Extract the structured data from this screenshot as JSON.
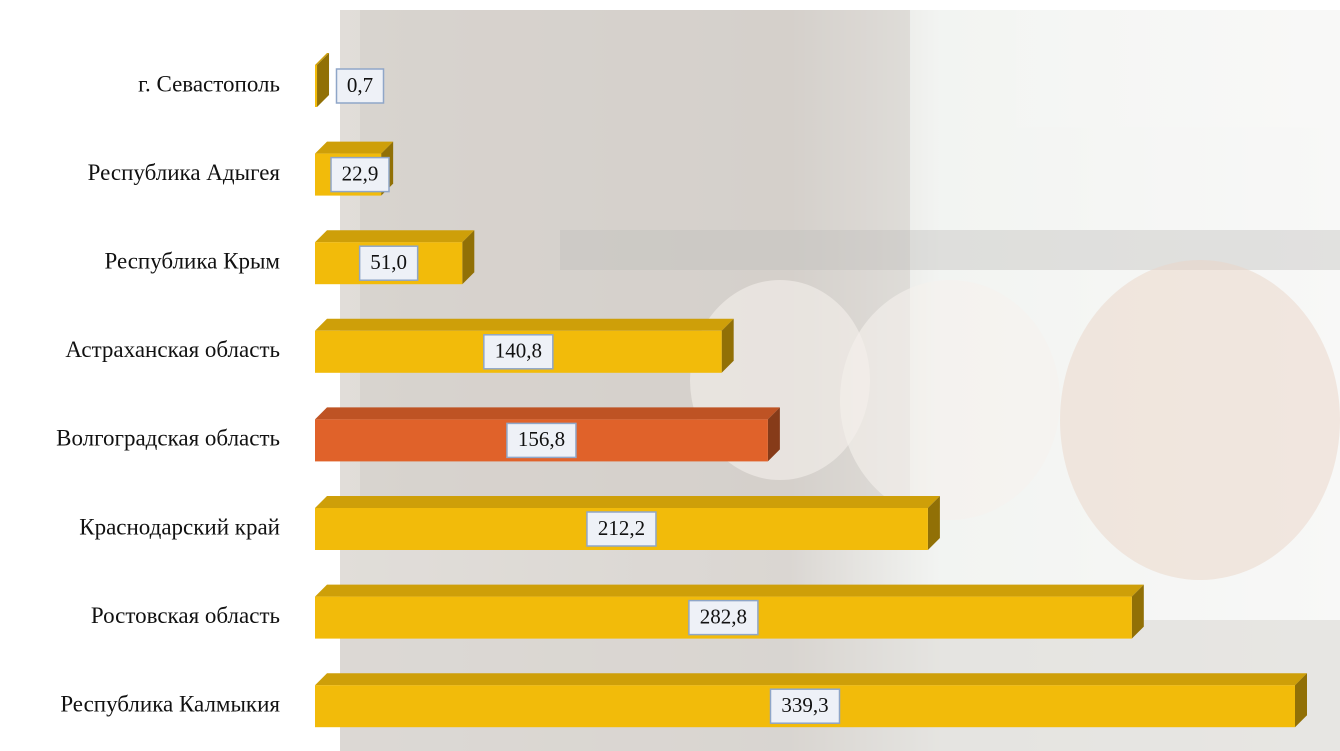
{
  "chart_data": {
    "type": "bar3d",
    "orientation": "horizontal",
    "categories": [
      "г. Севастополь",
      "Республика Адыгея",
      "Республика Крым",
      "Астраханская область",
      "Волгоградская область",
      "Краснодарский край",
      "Ростовская область",
      "Республика Калмыкия"
    ],
    "values": [
      0.7,
      22.9,
      51.0,
      140.8,
      156.8,
      212.2,
      282.8,
      339.3
    ],
    "value_labels": [
      "0,7",
      "22,9",
      "51,0",
      "140,8",
      "156,8",
      "212,2",
      "282,8",
      "339,3"
    ],
    "colors": [
      "#f2bb0a",
      "#f2bb0a",
      "#f2bb0a",
      "#f2bb0a",
      "#e0622a",
      "#f2bb0a",
      "#f2bb0a",
      "#f2bb0a"
    ]
  }
}
